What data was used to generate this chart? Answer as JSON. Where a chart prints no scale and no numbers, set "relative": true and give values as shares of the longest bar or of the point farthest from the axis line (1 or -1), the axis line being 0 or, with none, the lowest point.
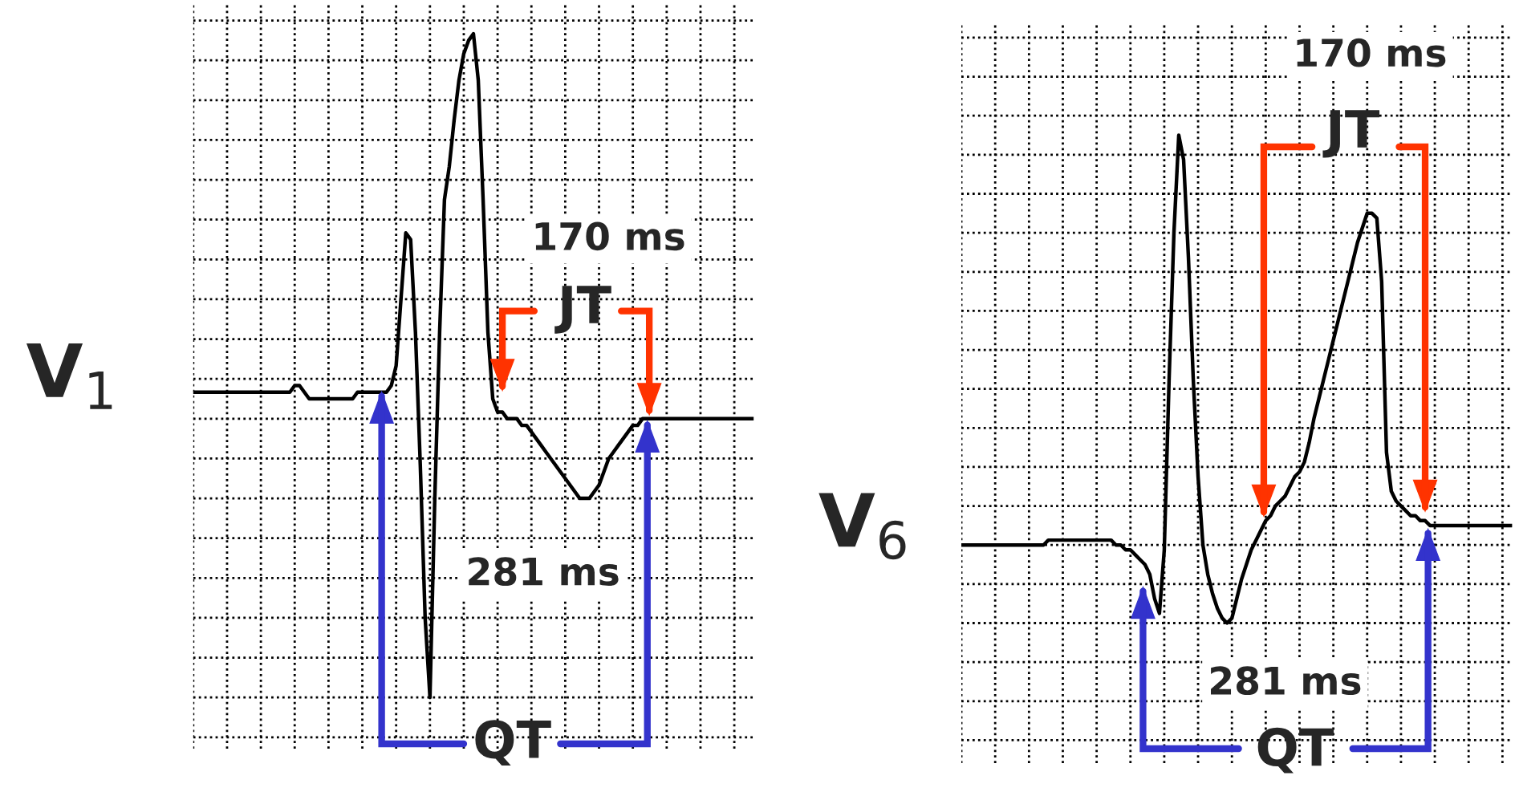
{
  "chart_data": [
    {
      "type": "line",
      "relative": true,
      "grid": true,
      "categories": [
        null,
        null,
        null,
        null,
        null,
        null,
        null,
        null,
        null,
        null,
        null,
        null,
        null,
        null,
        null,
        null,
        null,
        null,
        null,
        null,
        null,
        null,
        null,
        null,
        null,
        null,
        null,
        null,
        null,
        null,
        null,
        null,
        null,
        null,
        null,
        null,
        null,
        null,
        null,
        null,
        null,
        null,
        null,
        null,
        null,
        null,
        null,
        null,
        null,
        null,
        null,
        null,
        null,
        null,
        null,
        null,
        null,
        null,
        null,
        null,
        null,
        null,
        null,
        null,
        null,
        null,
        null,
        null,
        null,
        null,
        null,
        null,
        null,
        null,
        null,
        null,
        null,
        null,
        null,
        null,
        null,
        null,
        null,
        null,
        null,
        null,
        null,
        null,
        null,
        null,
        null,
        null,
        null,
        null,
        null,
        null,
        null,
        null,
        null,
        null,
        null,
        null,
        null,
        null,
        null,
        null,
        null,
        null,
        null,
        null,
        null,
        null,
        null,
        null,
        null,
        null,
        null
      ],
      "series": [
        {
          "color": "#000000",
          "values": [
            0.46,
            0.46,
            0.46,
            0.46,
            0.46,
            0.46,
            0.46,
            0.46,
            0.46,
            0.46,
            0.46,
            0.46,
            0.46,
            0.46,
            0.46,
            0.46,
            0.46,
            0.46,
            0.46,
            0.46,
            0.46,
            0.47,
            0.47,
            0.46,
            0.45,
            0.45,
            0.45,
            0.45,
            0.45,
            0.45,
            0.45,
            0.45,
            0.45,
            0.45,
            0.46,
            0.46,
            0.46,
            0.46,
            0.46,
            0.46,
            0.46,
            0.47,
            0.5,
            0.6,
            0.7,
            0.69,
            0.55,
            0.35,
            0.12,
            0.0,
            0.3,
            0.55,
            0.75,
            0.8,
            0.87,
            0.93,
            0.97,
            0.99,
            1.0,
            0.93,
            0.75,
            0.55,
            0.45,
            0.43,
            0.43,
            0.42,
            0.42,
            0.42,
            0.41,
            0.41,
            0.4,
            0.39,
            0.38,
            0.37,
            0.36,
            0.35,
            0.34,
            0.33,
            0.32,
            0.31,
            0.3,
            0.3,
            0.3,
            0.31,
            0.32,
            0.34,
            0.36,
            0.37,
            0.38,
            0.39,
            0.4,
            0.41,
            0.41,
            0.42,
            0.42,
            0.42,
            0.42,
            0.42,
            0.42,
            0.42,
            0.42,
            0.42,
            0.42,
            0.42,
            0.42,
            0.42,
            0.42,
            0.42,
            0.42,
            0.42,
            0.42,
            0.42,
            0.42,
            0.42,
            0.42,
            0.42,
            0.42
          ]
        }
      ],
      "annotations": [
        "V$_{1}$",
        "170 ms",
        "JT",
        "281 ms",
        "QT"
      ]
    },
    {
      "type": "line",
      "relative": true,
      "grid": true,
      "categories": [
        null,
        null,
        null,
        null,
        null,
        null,
        null,
        null,
        null,
        null,
        null,
        null,
        null,
        null,
        null,
        null,
        null,
        null,
        null,
        null,
        null,
        null,
        null,
        null,
        null,
        null,
        null,
        null,
        null,
        null,
        null,
        null,
        null,
        null,
        null,
        null,
        null,
        null,
        null,
        null,
        null,
        null,
        null,
        null,
        null,
        null,
        null,
        null,
        null,
        null,
        null,
        null,
        null,
        null,
        null,
        null,
        null,
        null,
        null,
        null,
        null,
        null,
        null,
        null,
        null,
        null,
        null,
        null,
        null,
        null,
        null,
        null,
        null,
        null,
        null,
        null,
        null,
        null,
        null,
        null,
        null,
        null,
        null,
        null,
        null,
        null,
        null,
        null,
        null,
        null,
        null,
        null,
        null,
        null,
        null,
        null,
        null,
        null,
        null,
        null,
        null,
        null,
        null,
        null,
        null,
        null,
        null,
        null,
        null,
        null,
        null,
        null,
        null,
        null,
        null
      ],
      "series": [
        {
          "color": "#000000",
          "values": [
            0.16,
            0.16,
            0.16,
            0.16,
            0.16,
            0.16,
            0.16,
            0.16,
            0.16,
            0.16,
            0.16,
            0.16,
            0.16,
            0.16,
            0.16,
            0.16,
            0.16,
            0.16,
            0.17,
            0.17,
            0.17,
            0.17,
            0.17,
            0.17,
            0.17,
            0.17,
            0.17,
            0.17,
            0.17,
            0.17,
            0.17,
            0.17,
            0.16,
            0.16,
            0.15,
            0.15,
            0.14,
            0.13,
            0.12,
            0.1,
            0.05,
            0.02,
            0.15,
            0.5,
            0.8,
            1.0,
            0.95,
            0.75,
            0.5,
            0.3,
            0.16,
            0.1,
            0.06,
            0.03,
            0.01,
            0.0,
            0.01,
            0.05,
            0.09,
            0.12,
            0.15,
            0.17,
            0.19,
            0.21,
            0.22,
            0.24,
            0.25,
            0.26,
            0.28,
            0.3,
            0.31,
            0.33,
            0.37,
            0.42,
            0.46,
            0.5,
            0.54,
            0.58,
            0.62,
            0.66,
            0.7,
            0.74,
            0.78,
            0.81,
            0.84,
            0.84,
            0.83,
            0.7,
            0.35,
            0.27,
            0.25,
            0.24,
            0.23,
            0.22,
            0.22,
            0.21,
            0.21,
            0.2,
            0.2,
            0.2,
            0.2,
            0.2,
            0.2,
            0.2,
            0.2,
            0.2,
            0.2,
            0.2,
            0.2,
            0.2,
            0.2,
            0.2,
            0.2,
            0.2,
            0.2
          ]
        }
      ],
      "annotations": [
        "V$_{6}$",
        "170 ms",
        "JT",
        "281 ms",
        "QT"
      ]
    }
  ]
}
